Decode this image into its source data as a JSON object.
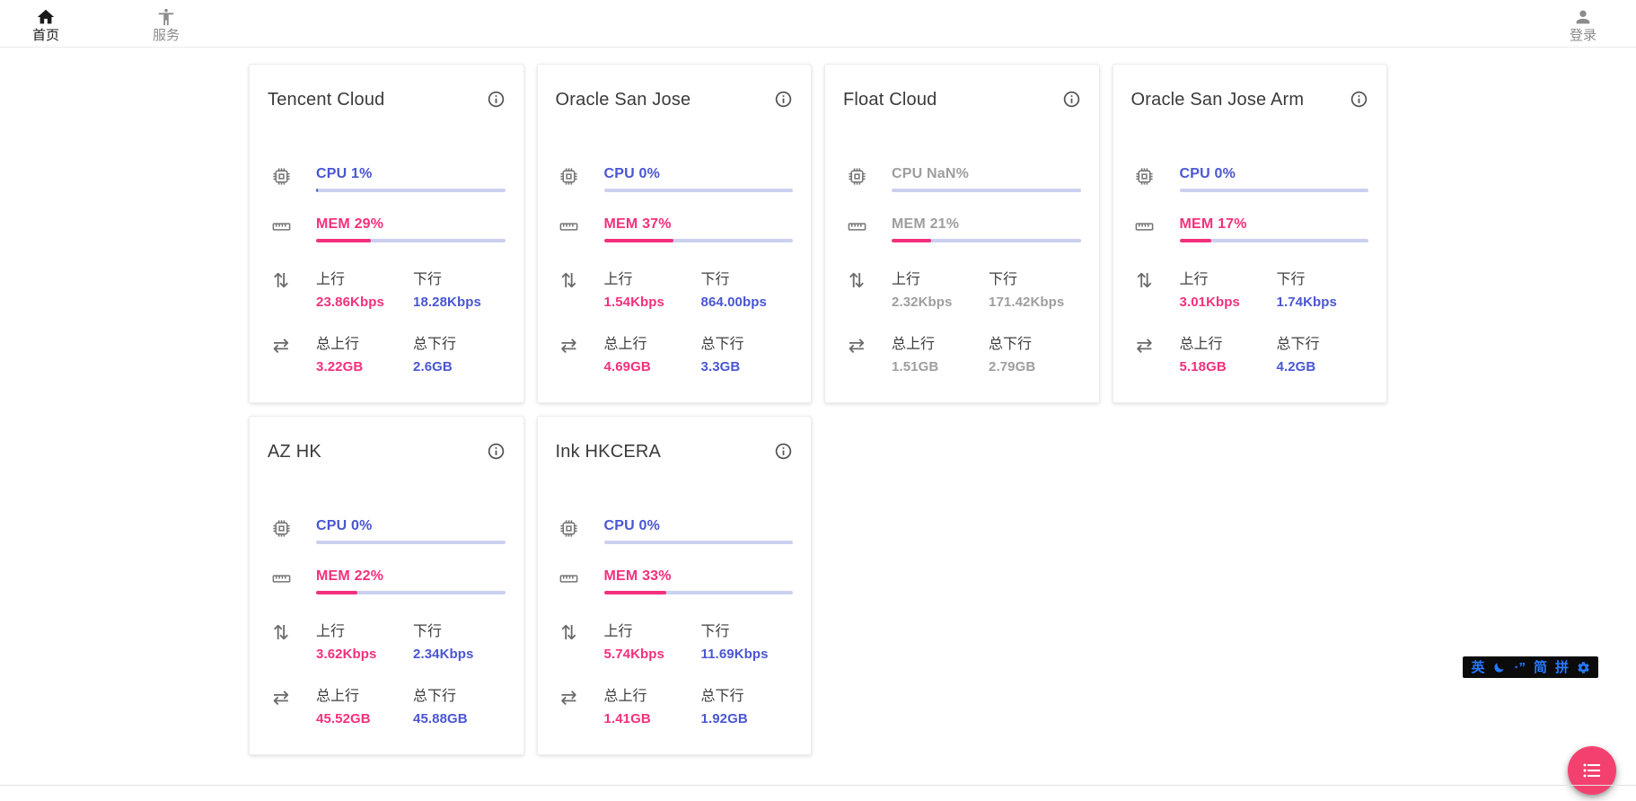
{
  "nav": {
    "home": {
      "label": "首页"
    },
    "services": {
      "label": "服务"
    },
    "login": {
      "label": "登录"
    }
  },
  "labels": {
    "upload": "上行",
    "download": "下行",
    "total_upload": "总上行",
    "total_download": "总下行"
  },
  "servers": [
    {
      "name": "Tencent Cloud",
      "cpu_text": "CPU 1%",
      "cpu_pct": 1,
      "mem_text": "MEM 29%",
      "mem_pct": 29,
      "upload": "23.86Kbps",
      "download": "18.28Kbps",
      "total_upload": "3.22GB",
      "total_download": "2.6GB",
      "stale": false
    },
    {
      "name": "Oracle San Jose",
      "cpu_text": "CPU 0%",
      "cpu_pct": 0,
      "mem_text": "MEM 37%",
      "mem_pct": 37,
      "upload": "1.54Kbps",
      "download": "864.00bps",
      "total_upload": "4.69GB",
      "total_download": "3.3GB",
      "stale": false
    },
    {
      "name": "Float Cloud",
      "cpu_text": "CPU NaN%",
      "cpu_pct": 0,
      "mem_text": "MEM 21%",
      "mem_pct": 21,
      "upload": "2.32Kbps",
      "download": "171.42Kbps",
      "total_upload": "1.51GB",
      "total_download": "2.79GB",
      "stale": true
    },
    {
      "name": "Oracle San Jose Arm",
      "cpu_text": "CPU 0%",
      "cpu_pct": 0,
      "mem_text": "MEM 17%",
      "mem_pct": 17,
      "upload": "3.01Kbps",
      "download": "1.74Kbps",
      "total_upload": "5.18GB",
      "total_download": "4.2GB",
      "stale": false
    },
    {
      "name": "AZ HK",
      "cpu_text": "CPU 0%",
      "cpu_pct": 0,
      "mem_text": "MEM 22%",
      "mem_pct": 22,
      "upload": "3.62Kbps",
      "download": "2.34Kbps",
      "total_upload": "45.52GB",
      "total_download": "45.88GB",
      "stale": false
    },
    {
      "name": "Ink HKCERA",
      "cpu_text": "CPU 0%",
      "cpu_pct": 0,
      "mem_text": "MEM 33%",
      "mem_pct": 33,
      "upload": "5.74Kbps",
      "download": "11.69Kbps",
      "total_upload": "1.41GB",
      "total_download": "1.92GB",
      "stale": false
    }
  ],
  "ime": {
    "english_mode": "英",
    "punctuation": "·”",
    "charset": "简",
    "scheme": "拼"
  },
  "colors": {
    "accent_blue": "#4a56d2",
    "accent_pink": "#f3307c",
    "bar_track": "#cbd0f0",
    "stale_gray": "#9e9e9e",
    "fab_pink": "#f3416f",
    "ime_blue": "#2979ff"
  }
}
